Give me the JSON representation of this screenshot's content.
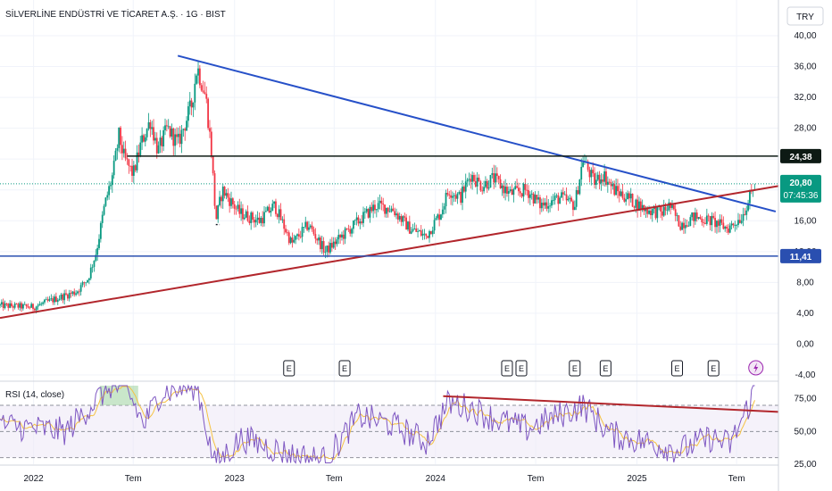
{
  "header": {
    "title": "SİLVERLİNE ENDÜSTRİ VE TİCARET A.Ş. · 1G · BIST",
    "currency": "TRY"
  },
  "colors": {
    "up": "#089981",
    "down": "#f23645",
    "blue_trend": "#2650c8",
    "red_trend": "#b2262c",
    "resistance": "#0d1a14",
    "support": "#2a4fb0",
    "price_tag": "#089981",
    "rsi_line": "#7e57c2",
    "rsi_ma": "#f5c242"
  },
  "chart_data": [
    {
      "type": "candlestick",
      "x_range": [
        "2021-11-01",
        "2025-09-15"
      ],
      "ylim": [
        -4,
        40
      ],
      "y_ticks": [
        "40,00",
        "36,00",
        "32,00",
        "28,00",
        "24,00",
        "20,00",
        "16,00",
        "12,00",
        "8,00",
        "4,00",
        "0,00",
        "-4,00"
      ],
      "x_ticks": [
        {
          "date": "2022-01-01",
          "label": "2022"
        },
        {
          "date": "2022-07-01",
          "label": "Tem"
        },
        {
          "date": "2023-01-01",
          "label": "2023"
        },
        {
          "date": "2023-07-01",
          "label": "Tem"
        },
        {
          "date": "2024-01-01",
          "label": "2024"
        },
        {
          "date": "2024-07-01",
          "label": "Tem"
        },
        {
          "date": "2025-01-01",
          "label": "2025"
        },
        {
          "date": "2025-07-01",
          "label": "Tem"
        }
      ],
      "price_path": [
        [
          "2021-11-01",
          5.0
        ],
        [
          "2022-01-01",
          4.8
        ],
        [
          "2022-02-15",
          6.0
        ],
        [
          "2022-03-20",
          6.8
        ],
        [
          "2022-04-10",
          8.5
        ],
        [
          "2022-04-25",
          12.0
        ],
        [
          "2022-05-10",
          18.0
        ],
        [
          "2022-05-25",
          22.0
        ],
        [
          "2022-06-05",
          27.0
        ],
        [
          "2022-06-15",
          24.0
        ],
        [
          "2022-07-01",
          22.0
        ],
        [
          "2022-07-15",
          26.0
        ],
        [
          "2022-08-01",
          29.0
        ],
        [
          "2022-08-15",
          25.0
        ],
        [
          "2022-09-01",
          28.0
        ],
        [
          "2022-09-20",
          26.0
        ],
        [
          "2022-10-15",
          31.0
        ],
        [
          "2022-10-25",
          36.0
        ],
        [
          "2022-11-10",
          32.0
        ],
        [
          "2022-11-20",
          25.0
        ],
        [
          "2022-11-28",
          16.0
        ],
        [
          "2022-12-10",
          20.0
        ],
        [
          "2023-01-10",
          17.0
        ],
        [
          "2023-02-15",
          16.0
        ],
        [
          "2023-03-15",
          18.0
        ],
        [
          "2023-04-15",
          13.0
        ],
        [
          "2023-05-15",
          15.5
        ],
        [
          "2023-06-15",
          12.0
        ],
        [
          "2023-07-15",
          14.0
        ],
        [
          "2023-08-15",
          16.0
        ],
        [
          "2023-09-15",
          18.0
        ],
        [
          "2023-10-15",
          17.5
        ],
        [
          "2023-11-15",
          15.0
        ],
        [
          "2023-12-15",
          14.0
        ],
        [
          "2024-01-10",
          17.0
        ],
        [
          "2024-01-25",
          20.0
        ],
        [
          "2024-02-15",
          19.0
        ],
        [
          "2024-03-05",
          22.0
        ],
        [
          "2024-03-25",
          20.5
        ],
        [
          "2024-04-15",
          21.5
        ],
        [
          "2024-05-15",
          19.5
        ],
        [
          "2024-06-15",
          20.0
        ],
        [
          "2024-07-10",
          18.0
        ],
        [
          "2024-08-15",
          19.0
        ],
        [
          "2024-09-10",
          18.0
        ],
        [
          "2024-09-25",
          24.0
        ],
        [
          "2024-10-15",
          21.0
        ],
        [
          "2024-11-01",
          22.0
        ],
        [
          "2024-11-20",
          20.0
        ],
        [
          "2024-12-15",
          19.0
        ],
        [
          "2025-01-15",
          17.5
        ],
        [
          "2025-02-15",
          17.0
        ],
        [
          "2025-03-01",
          18.0
        ],
        [
          "2025-03-20",
          15.5
        ],
        [
          "2025-04-15",
          16.5
        ],
        [
          "2025-05-15",
          16.0
        ],
        [
          "2025-06-15",
          15.0
        ],
        [
          "2025-07-10",
          16.5
        ],
        [
          "2025-07-25",
          19.0
        ],
        [
          "2025-08-05",
          20.8
        ]
      ],
      "gap_segments": [
        {
          "from": "2022-11-28",
          "to": "2022-12-05",
          "price": 15.5
        }
      ],
      "volatility_hint": 1.1,
      "last_price": "20,80",
      "countdown": "07:45:36",
      "lines": [
        {
          "name": "blue-trendline",
          "from": [
            "2022-09-20",
            37.4
          ],
          "to": [
            "2025-09-10",
            17.2
          ],
          "color": "#2650c8"
        },
        {
          "name": "red-trendline",
          "from": [
            "2021-11-01",
            3.4
          ],
          "to": [
            "2025-09-15",
            20.5
          ],
          "color": "#b2262c"
        }
      ],
      "horizontal_levels": [
        {
          "name": "resistance-level",
          "price": 24.38,
          "label": "24,38",
          "from": "2022-06-20",
          "color": "#0d1a14"
        },
        {
          "name": "support-level",
          "price": 11.41,
          "label": "11,41",
          "from": "2021-11-01",
          "color": "#2a4fb0"
        }
      ],
      "events": [
        {
          "date": "2023-04-10",
          "label": "E"
        },
        {
          "date": "2023-07-20",
          "label": "E"
        },
        {
          "date": "2024-05-10",
          "label": "E"
        },
        {
          "date": "2024-06-05",
          "label": "E"
        },
        {
          "date": "2024-09-10",
          "label": "E"
        },
        {
          "date": "2024-11-05",
          "label": "E"
        },
        {
          "date": "2025-03-15",
          "label": "E"
        },
        {
          "date": "2025-05-20",
          "label": "E"
        }
      ],
      "lightning_event": {
        "date": "2025-08-05"
      }
    },
    {
      "type": "line",
      "title": "RSI (14, close)",
      "ylim": [
        25,
        85
      ],
      "y_ticks": [
        "75,00",
        "50,00",
        "25,00"
      ],
      "levels": [
        70,
        50,
        30
      ],
      "trendline": {
        "from": [
          "2024-01-15",
          77
        ],
        "to": [
          "2025-09-15",
          65
        ]
      },
      "rsi_path": [
        [
          "2021-11-01",
          55
        ],
        [
          "2022-03-01",
          50
        ],
        [
          "2022-04-20",
          72
        ],
        [
          "2022-05-20",
          85
        ],
        [
          "2022-06-20",
          82
        ],
        [
          "2022-07-20",
          55
        ],
        [
          "2022-08-20",
          80
        ],
        [
          "2022-10-25",
          85
        ],
        [
          "2022-11-25",
          25
        ],
        [
          "2023-01-15",
          45
        ],
        [
          "2023-04-15",
          32
        ],
        [
          "2023-06-15",
          28
        ],
        [
          "2023-08-15",
          62
        ],
        [
          "2023-10-15",
          55
        ],
        [
          "2023-12-15",
          42
        ],
        [
          "2024-01-25",
          72
        ],
        [
          "2024-03-05",
          68
        ],
        [
          "2024-04-15",
          60
        ],
        [
          "2024-06-15",
          52
        ],
        [
          "2024-09-25",
          70
        ],
        [
          "2024-11-15",
          48
        ],
        [
          "2025-01-15",
          42
        ],
        [
          "2025-03-20",
          36
        ],
        [
          "2025-05-15",
          45
        ],
        [
          "2025-06-20",
          40
        ],
        [
          "2025-07-25",
          72
        ],
        [
          "2025-08-05",
          88
        ]
      ]
    }
  ]
}
